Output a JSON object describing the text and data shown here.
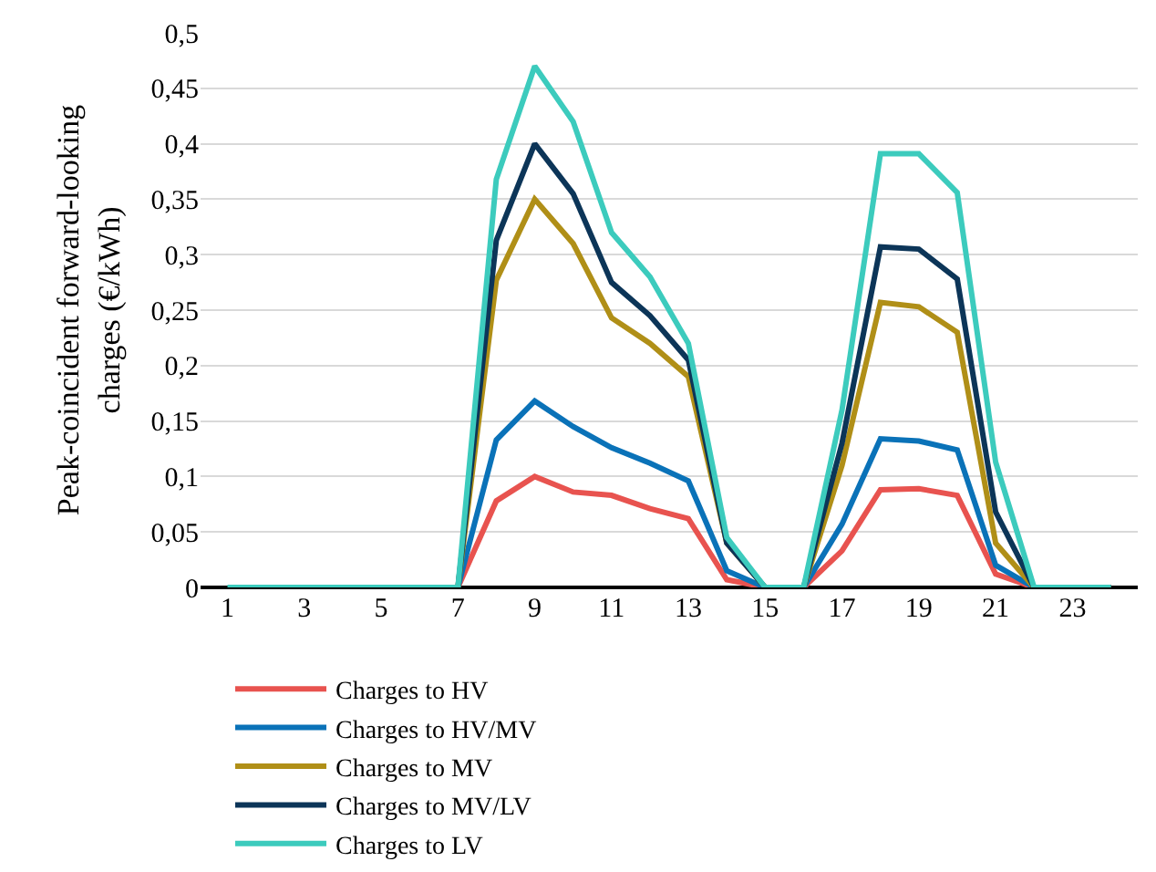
{
  "chart_data": {
    "type": "line",
    "ylabel": "Peak-coincident forward-looking charges (€/kWh)",
    "x": [
      1,
      2,
      3,
      4,
      5,
      6,
      7,
      8,
      9,
      10,
      11,
      12,
      13,
      14,
      15,
      16,
      17,
      18,
      19,
      20,
      21,
      22,
      23,
      24
    ],
    "series": [
      {
        "name": "Charges to HV",
        "color": "#e8534f",
        "values": [
          null,
          null,
          null,
          null,
          null,
          0,
          0,
          0.078,
          0.1,
          0.086,
          0.083,
          0.071,
          0.062,
          0.007,
          0,
          0,
          0.033,
          0.088,
          0.089,
          0.083,
          0.012,
          0,
          0,
          0
        ]
      },
      {
        "name": "Charges to HV/MV",
        "color": "#0a72b8",
        "values": [
          null,
          null,
          null,
          null,
          null,
          0,
          0,
          0.133,
          0.168,
          0.145,
          0.126,
          0.112,
          0.096,
          0.015,
          0,
          0,
          0.057,
          0.134,
          0.132,
          0.124,
          0.02,
          0,
          0,
          0
        ]
      },
      {
        "name": "Charges to MV",
        "color": "#b08f17",
        "values": [
          null,
          null,
          null,
          null,
          null,
          0,
          0,
          0.277,
          0.35,
          0.31,
          0.243,
          0.22,
          0.19,
          0.04,
          0,
          0,
          0.11,
          0.257,
          0.253,
          0.23,
          0.04,
          0,
          0,
          0
        ]
      },
      {
        "name": "Charges to MV/LV",
        "color": "#0c3558",
        "values": [
          null,
          null,
          null,
          null,
          null,
          0,
          0,
          0.313,
          0.4,
          0.355,
          0.275,
          0.245,
          0.205,
          0.04,
          0,
          0,
          0.13,
          0.307,
          0.305,
          0.278,
          0.068,
          0,
          0,
          0
        ]
      },
      {
        "name": "Charges to LV",
        "color": "#3ccbbd",
        "values": [
          0,
          0,
          0,
          0,
          0,
          0,
          0,
          0.368,
          0.47,
          0.42,
          0.32,
          0.28,
          0.22,
          0.045,
          0,
          0,
          0.16,
          0.391,
          0.391,
          0.356,
          0.113,
          0,
          0,
          0
        ]
      }
    ],
    "xlim": [
      0.3,
      24.7
    ],
    "xticks": [
      1,
      3,
      5,
      7,
      9,
      11,
      13,
      15,
      17,
      19,
      21,
      23
    ],
    "ylim": [
      0,
      0.5
    ],
    "yticks": [
      0,
      {
        "value": 0.05,
        "label": "0,05"
      },
      {
        "value": 0.1,
        "label": "0,1"
      },
      {
        "value": 0.15,
        "label": "0,15"
      },
      {
        "value": 0.2,
        "label": "0,2"
      },
      {
        "value": 0.25,
        "label": "0,25"
      },
      {
        "value": 0.3,
        "label": "0,3"
      },
      {
        "value": 0.35,
        "label": "0,35"
      },
      {
        "value": 0.4,
        "label": "0,4"
      },
      {
        "value": 0.45,
        "label": "0,45"
      },
      {
        "value": 0.5,
        "label": "0,5"
      }
    ],
    "grid": "y",
    "legend": "bottom",
    "marker": "none",
    "line_style": "solid"
  }
}
